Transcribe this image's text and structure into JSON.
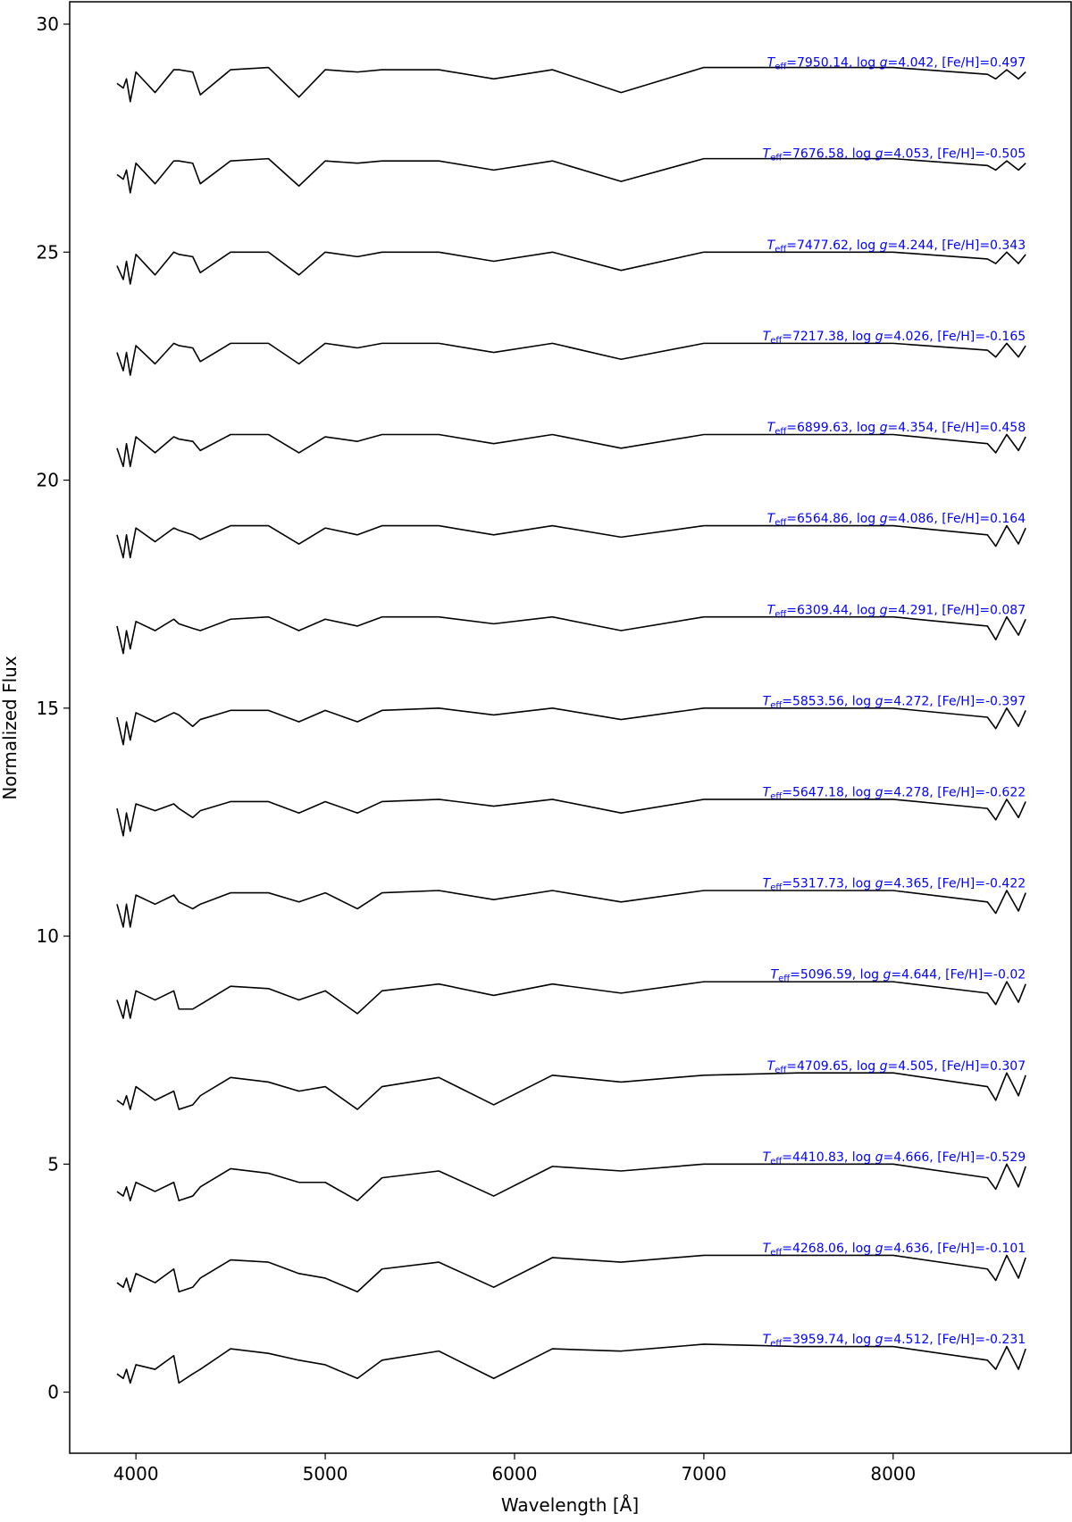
{
  "chart_data": {
    "type": "line",
    "xlabel": "Wavelength [Å]",
    "ylabel": "Normalized Flux",
    "xlim": [
      3650,
      8940
    ],
    "ylim": [
      -1.34,
      30.49
    ],
    "xticks": [
      4000,
      5000,
      6000,
      7000,
      8000
    ],
    "yticks": [
      0,
      5,
      10,
      15,
      20,
      25,
      30
    ],
    "line_color": "#000000",
    "annotation_color": "#0000ff",
    "annotation_parts": [
      "T",
      "eff",
      "=",
      ", log ",
      "g",
      "=",
      ", [Fe/H]="
    ],
    "x": [
      3900,
      3933,
      3950,
      3970,
      4000,
      4101,
      4200,
      4227,
      4300,
      4340,
      4500,
      4700,
      4861,
      5000,
      5170,
      5300,
      5600,
      5890,
      6200,
      6563,
      7000,
      7500,
      8000,
      8498,
      8542,
      8600,
      8662,
      8700
    ],
    "series": [
      {
        "teff": 7950.14,
        "logg": 4.042,
        "feh": 0.497,
        "values": [
          28.7,
          28.6,
          28.8,
          28.3,
          28.95,
          28.5,
          29,
          29,
          28.95,
          28.45,
          29,
          29.05,
          28.4,
          29,
          28.95,
          29,
          29,
          28.8,
          29,
          28.5,
          29.05,
          29.05,
          29.05,
          28.9,
          28.8,
          29,
          28.8,
          28.95
        ]
      },
      {
        "teff": 7676.58,
        "logg": 4.053,
        "feh": -0.505,
        "values": [
          26.7,
          26.6,
          26.8,
          26.3,
          26.95,
          26.5,
          27,
          27,
          26.95,
          26.5,
          27,
          27.05,
          26.45,
          27,
          26.95,
          27,
          27,
          26.8,
          27,
          26.55,
          27.05,
          27.05,
          27.05,
          26.9,
          26.8,
          27,
          26.8,
          26.95
        ]
      },
      {
        "teff": 7477.62,
        "logg": 4.244,
        "feh": 0.343,
        "values": [
          24.7,
          24.4,
          24.8,
          24.3,
          24.95,
          24.5,
          25,
          24.95,
          24.9,
          24.55,
          25,
          25,
          24.5,
          25,
          24.9,
          25,
          25,
          24.8,
          25,
          24.6,
          25,
          25,
          25,
          24.85,
          24.75,
          25,
          24.75,
          24.95
        ]
      },
      {
        "teff": 7217.38,
        "logg": 4.026,
        "feh": -0.165,
        "values": [
          22.8,
          22.4,
          22.8,
          22.3,
          22.95,
          22.55,
          23,
          22.95,
          22.9,
          22.6,
          23,
          23,
          22.55,
          23,
          22.9,
          23,
          23,
          22.8,
          23,
          22.65,
          23,
          23,
          23,
          22.85,
          22.7,
          23,
          22.7,
          22.95
        ]
      },
      {
        "teff": 6899.63,
        "logg": 4.354,
        "feh": 0.458,
        "values": [
          20.7,
          20.3,
          20.8,
          20.3,
          20.95,
          20.6,
          20.95,
          20.9,
          20.85,
          20.65,
          21,
          21,
          20.6,
          20.95,
          20.85,
          21,
          21,
          20.8,
          21,
          20.7,
          21,
          21,
          21,
          20.8,
          20.6,
          21,
          20.65,
          20.95
        ]
      },
      {
        "teff": 6564.86,
        "logg": 4.086,
        "feh": 0.164,
        "values": [
          18.8,
          18.3,
          18.8,
          18.3,
          18.95,
          18.65,
          18.95,
          18.9,
          18.8,
          18.7,
          19,
          19,
          18.6,
          18.95,
          18.8,
          19,
          19,
          18.8,
          19,
          18.75,
          19,
          19,
          19,
          18.8,
          18.55,
          19,
          18.6,
          18.95
        ]
      },
      {
        "teff": 6309.44,
        "logg": 4.291,
        "feh": 0.087,
        "values": [
          16.8,
          16.2,
          16.7,
          16.3,
          16.9,
          16.7,
          16.95,
          16.85,
          16.75,
          16.7,
          16.95,
          17,
          16.7,
          16.95,
          16.8,
          17,
          17,
          16.85,
          17,
          16.7,
          17,
          17,
          17,
          16.8,
          16.5,
          17,
          16.6,
          16.95
        ]
      },
      {
        "teff": 5853.56,
        "logg": 4.272,
        "feh": -0.397,
        "values": [
          14.8,
          14.2,
          14.7,
          14.3,
          14.9,
          14.7,
          14.9,
          14.85,
          14.6,
          14.75,
          14.95,
          14.95,
          14.7,
          14.95,
          14.7,
          14.95,
          15,
          14.85,
          15,
          14.75,
          15,
          15,
          15,
          14.8,
          14.55,
          15,
          14.6,
          14.95
        ]
      },
      {
        "teff": 5647.18,
        "logg": 4.278,
        "feh": -0.622,
        "values": [
          12.8,
          12.2,
          12.7,
          12.3,
          12.9,
          12.75,
          12.9,
          12.8,
          12.6,
          12.75,
          12.95,
          12.95,
          12.7,
          12.95,
          12.7,
          12.95,
          13,
          12.85,
          13,
          12.7,
          13,
          13,
          13,
          12.8,
          12.55,
          13,
          12.6,
          12.95
        ]
      },
      {
        "teff": 5317.73,
        "logg": 4.365,
        "feh": -0.422,
        "values": [
          10.7,
          10.2,
          10.7,
          10.2,
          10.9,
          10.7,
          10.9,
          10.75,
          10.6,
          10.7,
          10.95,
          10.95,
          10.75,
          10.95,
          10.6,
          10.95,
          11,
          10.8,
          11,
          10.75,
          11,
          11,
          11,
          10.75,
          10.5,
          11,
          10.55,
          10.95
        ]
      },
      {
        "teff": 5096.59,
        "logg": 4.644,
        "feh": -0.02,
        "values": [
          8.6,
          8.2,
          8.6,
          8.2,
          8.8,
          8.6,
          8.8,
          8.4,
          8.4,
          8.5,
          8.9,
          8.85,
          8.6,
          8.8,
          8.3,
          8.8,
          8.95,
          8.7,
          8.95,
          8.75,
          9,
          9,
          9,
          8.75,
          8.5,
          9,
          8.55,
          8.95
        ]
      },
      {
        "teff": 4709.65,
        "logg": 4.505,
        "feh": 0.307,
        "values": [
          6.4,
          6.3,
          6.5,
          6.2,
          6.7,
          6.4,
          6.6,
          6.2,
          6.3,
          6.5,
          6.9,
          6.8,
          6.6,
          6.7,
          6.2,
          6.7,
          6.9,
          6.3,
          6.95,
          6.8,
          6.95,
          7,
          7,
          6.7,
          6.4,
          7,
          6.5,
          6.95
        ]
      },
      {
        "teff": 4410.83,
        "logg": 4.666,
        "feh": -0.529,
        "values": [
          4.4,
          4.3,
          4.5,
          4.2,
          4.6,
          4.4,
          4.6,
          4.2,
          4.3,
          4.5,
          4.9,
          4.8,
          4.6,
          4.6,
          4.2,
          4.7,
          4.85,
          4.3,
          4.95,
          4.85,
          5,
          5,
          5,
          4.7,
          4.45,
          5,
          4.5,
          4.95
        ]
      },
      {
        "teff": 4268.06,
        "logg": 4.636,
        "feh": -0.101,
        "values": [
          2.4,
          2.3,
          2.5,
          2.2,
          2.6,
          2.4,
          2.7,
          2.2,
          2.3,
          2.5,
          2.9,
          2.85,
          2.6,
          2.5,
          2.2,
          2.7,
          2.85,
          2.3,
          2.95,
          2.85,
          3,
          3,
          3,
          2.7,
          2.45,
          3,
          2.5,
          2.95
        ]
      },
      {
        "teff": 3959.74,
        "logg": 4.512,
        "feh": -0.231,
        "values": [
          0.4,
          0.3,
          0.5,
          0.2,
          0.6,
          0.5,
          0.8,
          0.2,
          0.4,
          0.5,
          0.95,
          0.85,
          0.7,
          0.6,
          0.3,
          0.7,
          0.9,
          0.3,
          0.95,
          0.9,
          1.05,
          1,
          1,
          0.7,
          0.5,
          1,
          0.5,
          0.95
        ]
      }
    ]
  }
}
